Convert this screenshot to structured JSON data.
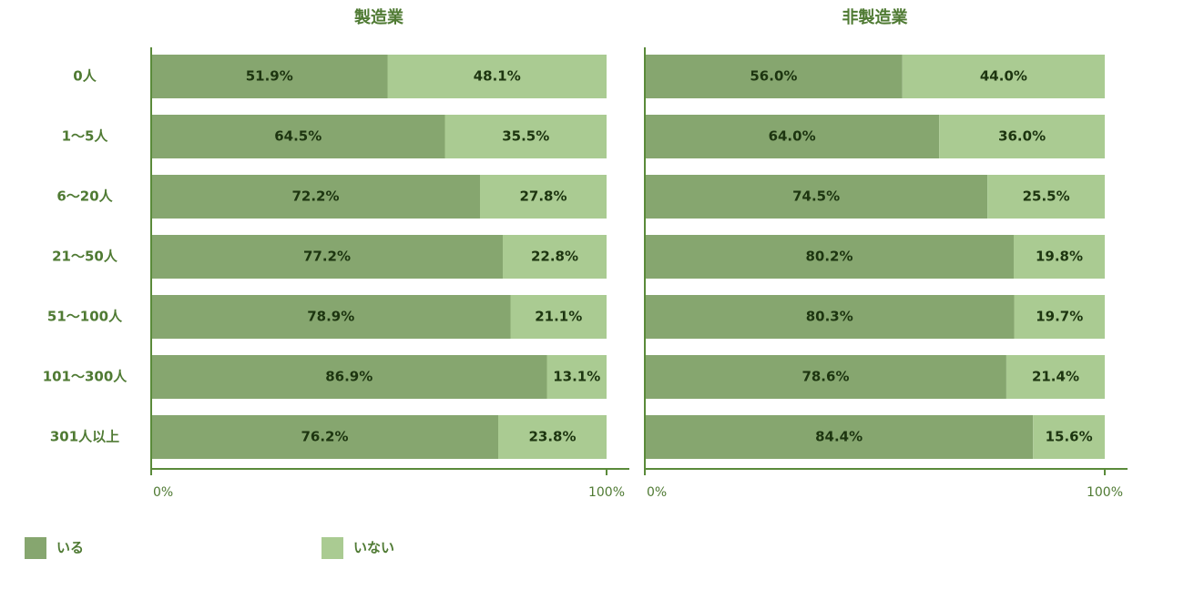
{
  "chart_data": [
    {
      "type": "stacked_barh",
      "title": "製造業",
      "categories": [
        "0人",
        "1～5人",
        "6～20人",
        "21～50人",
        "51～100人",
        "101～300人",
        "301人以上"
      ],
      "series": [
        {
          "name": "いる",
          "color": "#86a66f",
          "values": [
            51.9,
            64.5,
            72.2,
            77.2,
            78.9,
            86.9,
            76.2
          ],
          "value_labels": [
            "51.9%",
            "64.5%",
            "72.2%",
            "77.2%",
            "78.9%",
            "86.9%",
            "76.2%"
          ]
        },
        {
          "name": "いない",
          "color": "#aacb92",
          "values": [
            48.1,
            35.5,
            27.8,
            22.8,
            21.1,
            13.1,
            23.8
          ],
          "value_labels": [
            "48.1%",
            "35.5%",
            "27.8%",
            "22.8%",
            "21.1%",
            "13.1%",
            "23.8%"
          ]
        }
      ],
      "xlim": [
        0,
        100
      ],
      "xticks": [
        {
          "value": 0,
          "label": "0%"
        },
        {
          "value": 100,
          "label": "100%"
        }
      ]
    },
    {
      "type": "stacked_barh",
      "title": "非製造業",
      "series": [
        {
          "values": [
            56.0,
            64.0,
            74.5,
            80.2,
            80.3,
            78.6,
            84.4
          ],
          "value_labels": [
            "56.0%",
            "64.0%",
            "74.5%",
            "80.2%",
            "80.3%",
            "78.6%",
            "84.4%"
          ]
        },
        {
          "values": [
            44.0,
            36.0,
            25.5,
            19.8,
            19.7,
            21.4,
            15.6
          ],
          "value_labels": [
            "44.0%",
            "36.0%",
            "25.5%",
            "19.8%",
            "19.7%",
            "21.4%",
            "15.6%"
          ]
        }
      ],
      "xlim": [
        0,
        100
      ],
      "xticks": [
        {
          "value": 0,
          "label": "0%"
        },
        {
          "value": 100,
          "label": "100%"
        }
      ]
    }
  ]
}
